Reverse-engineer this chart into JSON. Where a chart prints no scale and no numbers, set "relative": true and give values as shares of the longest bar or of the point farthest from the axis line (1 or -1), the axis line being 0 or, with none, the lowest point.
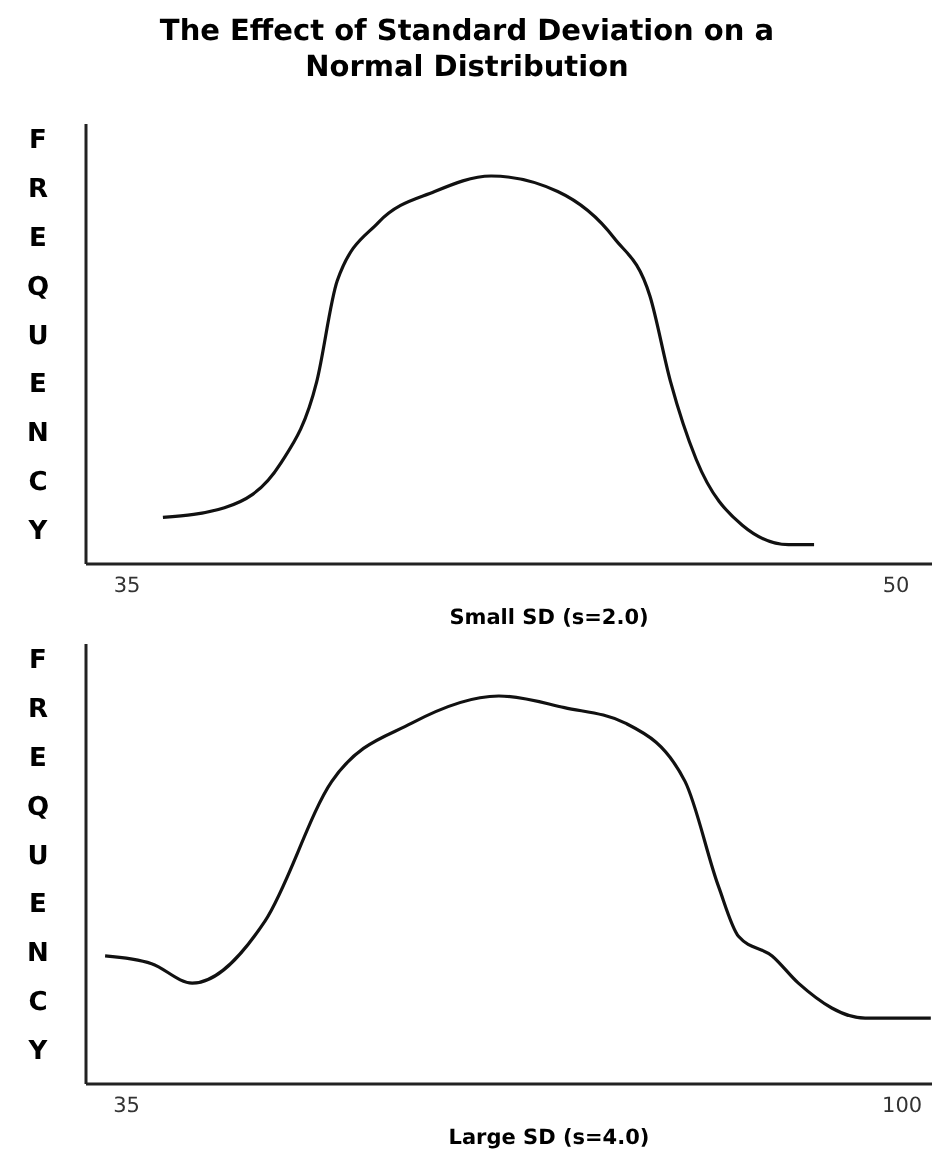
{
  "chart_data": [
    {
      "type": "line",
      "title": "The Effect of Standard Deviation on a Normal Distribution",
      "xlabel": "Small SD (s=2.0)",
      "ylabel": "FREQUENCY",
      "relative": true,
      "xlim": [
        34.2,
        50.7
      ],
      "xticks": [
        35,
        50
      ],
      "grid": false,
      "marker": "none",
      "line_style": "solid",
      "series": [
        {
          "color": "#111111",
          "x": [
            35.7,
            36.9,
            38.0,
            38.7,
            39.1,
            39.9,
            41.0,
            42.1,
            43.4,
            44.5,
            45.2,
            45.6,
            46.1,
            47.0,
            47.9,
            48.4
          ],
          "values": [
            0.12,
            0.145,
            0.26,
            0.47,
            0.73,
            0.88,
            0.96,
            1,
            0.96,
            0.84,
            0.69,
            0.47,
            0.27,
            0.1,
            0.05,
            0.05
          ]
        }
      ]
    },
    {
      "type": "line",
      "xlabel": "Large SD (s=4.0)",
      "ylabel": "FREQUENCY",
      "relative": true,
      "xlim": [
        31.6,
        102.5
      ],
      "xticks": [
        35,
        100
      ],
      "grid": false,
      "marker": "none",
      "line_style": "solid",
      "series": [
        {
          "color": "#111111",
          "x": [
            33.2,
            37.1,
            40.5,
            46.6,
            52.2,
            58.9,
            66.2,
            71.7,
            76.8,
            81.8,
            84.6,
            86.3,
            89.1,
            91.3,
            96.9,
            102.4
          ],
          "values": [
            0.33,
            0.31,
            0.26,
            0.42,
            0.78,
            0.93,
            1,
            0.97,
            0.93,
            0.78,
            0.51,
            0.38,
            0.33,
            0.26,
            0.17,
            0.17
          ]
        }
      ]
    }
  ]
}
